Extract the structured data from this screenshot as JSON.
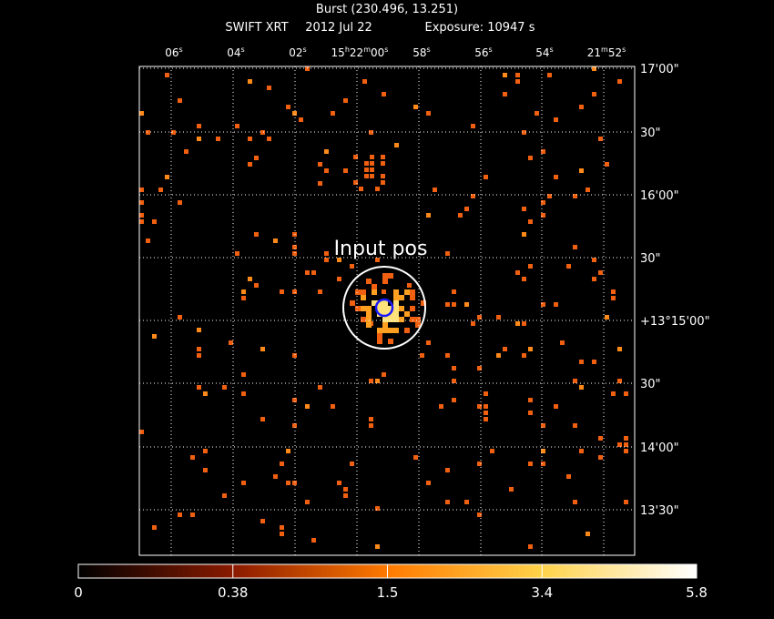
{
  "header": {
    "title": "Burst (230.496, 13.251)",
    "instrument": "SWIFT XRT",
    "date": "2012 Jul 22",
    "exposure": "Exposure: 10947 s"
  },
  "top_axis": [
    {
      "parts": [
        "06",
        "s"
      ]
    },
    {
      "parts": [
        "04",
        "s"
      ]
    },
    {
      "parts": [
        "02",
        "s"
      ]
    },
    {
      "parts": [
        "15",
        "h",
        "22",
        "m",
        "00",
        "s"
      ]
    },
    {
      "parts": [
        "58",
        "s"
      ]
    },
    {
      "parts": [
        "56",
        "s"
      ]
    },
    {
      "parts": [
        "54",
        "s"
      ]
    },
    {
      "parts": [
        "21",
        "m",
        "52",
        "s"
      ]
    }
  ],
  "right_axis": [
    "17'00\"",
    "30\"",
    "16'00\"",
    "30\"",
    "+13°15'00\"",
    "30\"",
    "14'00\"",
    "13'30\""
  ],
  "annotation": "Input pos",
  "colorbar": {
    "ticks": [
      0,
      0.38,
      1.5,
      3.4,
      5.8
    ]
  }
}
